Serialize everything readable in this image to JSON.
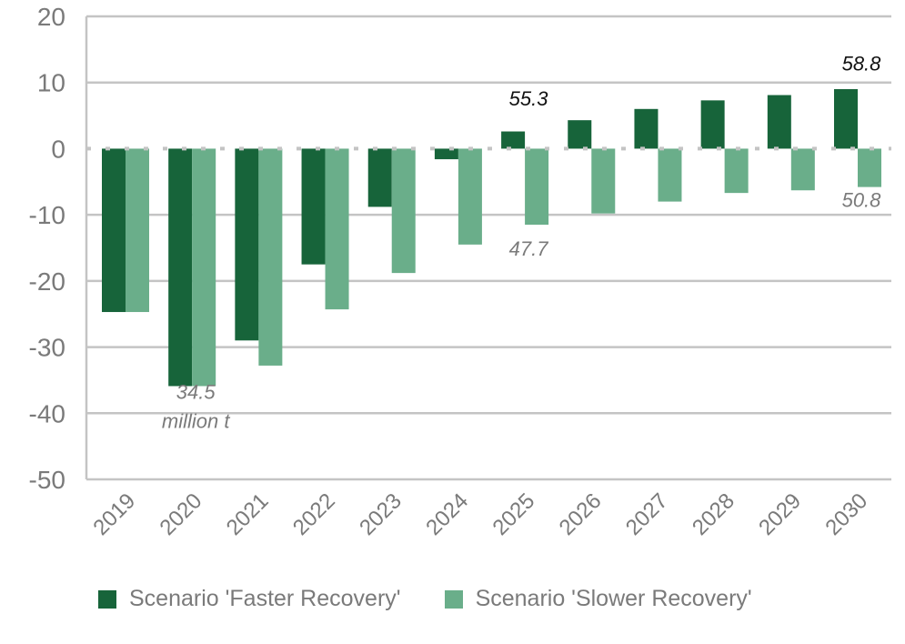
{
  "chart_data": {
    "type": "bar",
    "categories": [
      "2019",
      "2020",
      "2021",
      "2022",
      "2023",
      "2024",
      "2025",
      "2026",
      "2027",
      "2028",
      "2029",
      "2030"
    ],
    "series": [
      {
        "name": "Scenario 'Faster Recovery'",
        "color": "#17643a",
        "values": [
          -24.7,
          -35.9,
          -29.0,
          -17.5,
          -8.8,
          -1.6,
          2.6,
          4.3,
          6.0,
          7.3,
          8.1,
          9.0
        ]
      },
      {
        "name": "Scenario 'Slower Recovery'",
        "color": "#6aae8a",
        "values": [
          -24.7,
          -35.9,
          -32.8,
          -24.3,
          -18.8,
          -14.5,
          -11.5,
          -9.8,
          -8.0,
          -6.7,
          -6.3,
          -5.8
        ]
      }
    ],
    "yticks": [
      20,
      10,
      0,
      -10,
      -20,
      -30,
      -40,
      -50
    ],
    "ylim": [
      -50,
      20
    ],
    "xlabel": "",
    "ylabel": "",
    "grid": true,
    "legend_position": "bottom",
    "annotations": [
      {
        "category": "2020",
        "value": -37.8,
        "lines": [
          "34.5",
          "million  t"
        ],
        "color": "#7a7a7a"
      },
      {
        "category": "2025",
        "value": 6.5,
        "lines": [
          "55.3"
        ],
        "color": "#111111"
      },
      {
        "category": "2025",
        "value": -16.2,
        "lines": [
          "47.7"
        ],
        "color": "#7a7a7a"
      },
      {
        "category": "2030",
        "value": 11.8,
        "lines": [
          "58.8"
        ],
        "color": "#111111"
      },
      {
        "category": "2030",
        "value": -8.8,
        "lines": [
          "50.8"
        ],
        "color": "#7a7a7a"
      }
    ]
  },
  "legend": {
    "faster": "Scenario 'Faster Recovery'",
    "slower": "Scenario 'Slower Recovery'"
  }
}
